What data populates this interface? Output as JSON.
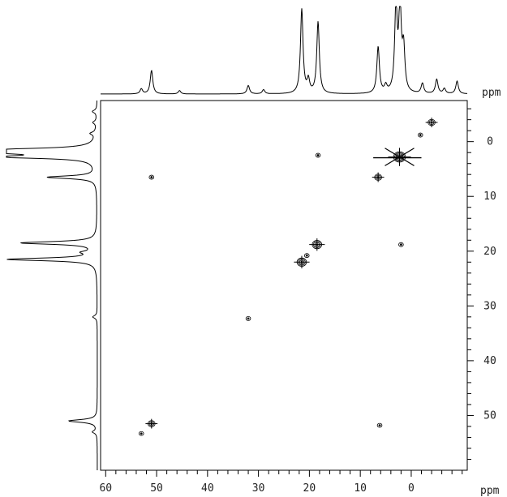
{
  "chart_data": {
    "type": "scatter",
    "title": "",
    "x_axis": {
      "unit": "ppm",
      "range": [
        61,
        -11
      ],
      "ticks": [
        60,
        50,
        40,
        30,
        20,
        10,
        0
      ],
      "tick_labels": [
        "60",
        "50",
        "40",
        "30",
        "20",
        "10",
        "0"
      ],
      "minor_step": 2,
      "direction": "reversed"
    },
    "y_axis": {
      "unit": "ppm",
      "range": [
        -7.5,
        60
      ],
      "ticks": [
        0,
        10,
        20,
        30,
        40,
        50
      ],
      "tick_labels": [
        "0",
        "10",
        "20",
        "30",
        "40",
        "50"
      ],
      "minor_step": 2,
      "direction": "increasing-downward"
    },
    "top_projection": {
      "peaks": [
        {
          "x": 53.0,
          "h": 0.06
        },
        {
          "x": 51.0,
          "h": 0.28
        },
        {
          "x": 45.5,
          "h": 0.04
        },
        {
          "x": 32.0,
          "h": 0.1
        },
        {
          "x": 29.0,
          "h": 0.05
        },
        {
          "x": 21.5,
          "h": 1.0
        },
        {
          "x": 20.2,
          "h": 0.15
        },
        {
          "x": 18.3,
          "h": 0.85
        },
        {
          "x": 6.5,
          "h": 0.55
        },
        {
          "x": 5.0,
          "h": 0.08
        },
        {
          "x": 3.0,
          "h": 1.0
        },
        {
          "x": 2.2,
          "h": 1.0
        },
        {
          "x": 1.5,
          "h": 0.5
        },
        {
          "x": -2.2,
          "h": 0.12
        },
        {
          "x": -5.0,
          "h": 0.17
        },
        {
          "x": -6.5,
          "h": 0.06
        },
        {
          "x": -9.0,
          "h": 0.15
        }
      ]
    },
    "left_projection": {
      "peaks": [
        {
          "y": -5.5,
          "h": 0.05
        },
        {
          "y": -3.5,
          "h": 0.04
        },
        {
          "y": -1.5,
          "h": 0.06
        },
        {
          "y": 1.5,
          "h": 1.0
        },
        {
          "y": 2.0,
          "h": 1.0
        },
        {
          "y": 2.8,
          "h": 1.0
        },
        {
          "y": 6.5,
          "h": 0.55
        },
        {
          "y": 18.5,
          "h": 0.85
        },
        {
          "y": 20.2,
          "h": 0.12
        },
        {
          "y": 21.5,
          "h": 1.0
        },
        {
          "y": 32.0,
          "h": 0.05
        },
        {
          "y": 51.0,
          "h": 0.32
        },
        {
          "y": 53.0,
          "h": 0.05
        }
      ]
    },
    "cross_peaks": [
      {
        "x": -4.0,
        "y": -3.5,
        "size": 2
      },
      {
        "x": -1.8,
        "y": -1.2,
        "size": 1
      },
      {
        "x": 2.3,
        "y": 2.8,
        "size": 5
      },
      {
        "x": 6.5,
        "y": 6.5,
        "size": 2
      },
      {
        "x": 18.3,
        "y": 2.5,
        "size": 1
      },
      {
        "x": 51.0,
        "y": 6.5,
        "size": 1
      },
      {
        "x": 18.5,
        "y": 18.8,
        "size": 3
      },
      {
        "x": 20.5,
        "y": 20.8,
        "size": 1
      },
      {
        "x": 21.5,
        "y": 22.0,
        "size": 3
      },
      {
        "x": 2.0,
        "y": 18.8,
        "size": 1
      },
      {
        "x": 32.0,
        "y": 32.3,
        "size": 1
      },
      {
        "x": 51.0,
        "y": 51.5,
        "size": 2
      },
      {
        "x": 53.0,
        "y": 53.3,
        "size": 1
      },
      {
        "x": 6.2,
        "y": 51.8,
        "size": 1
      }
    ],
    "line_color": "#000000"
  }
}
